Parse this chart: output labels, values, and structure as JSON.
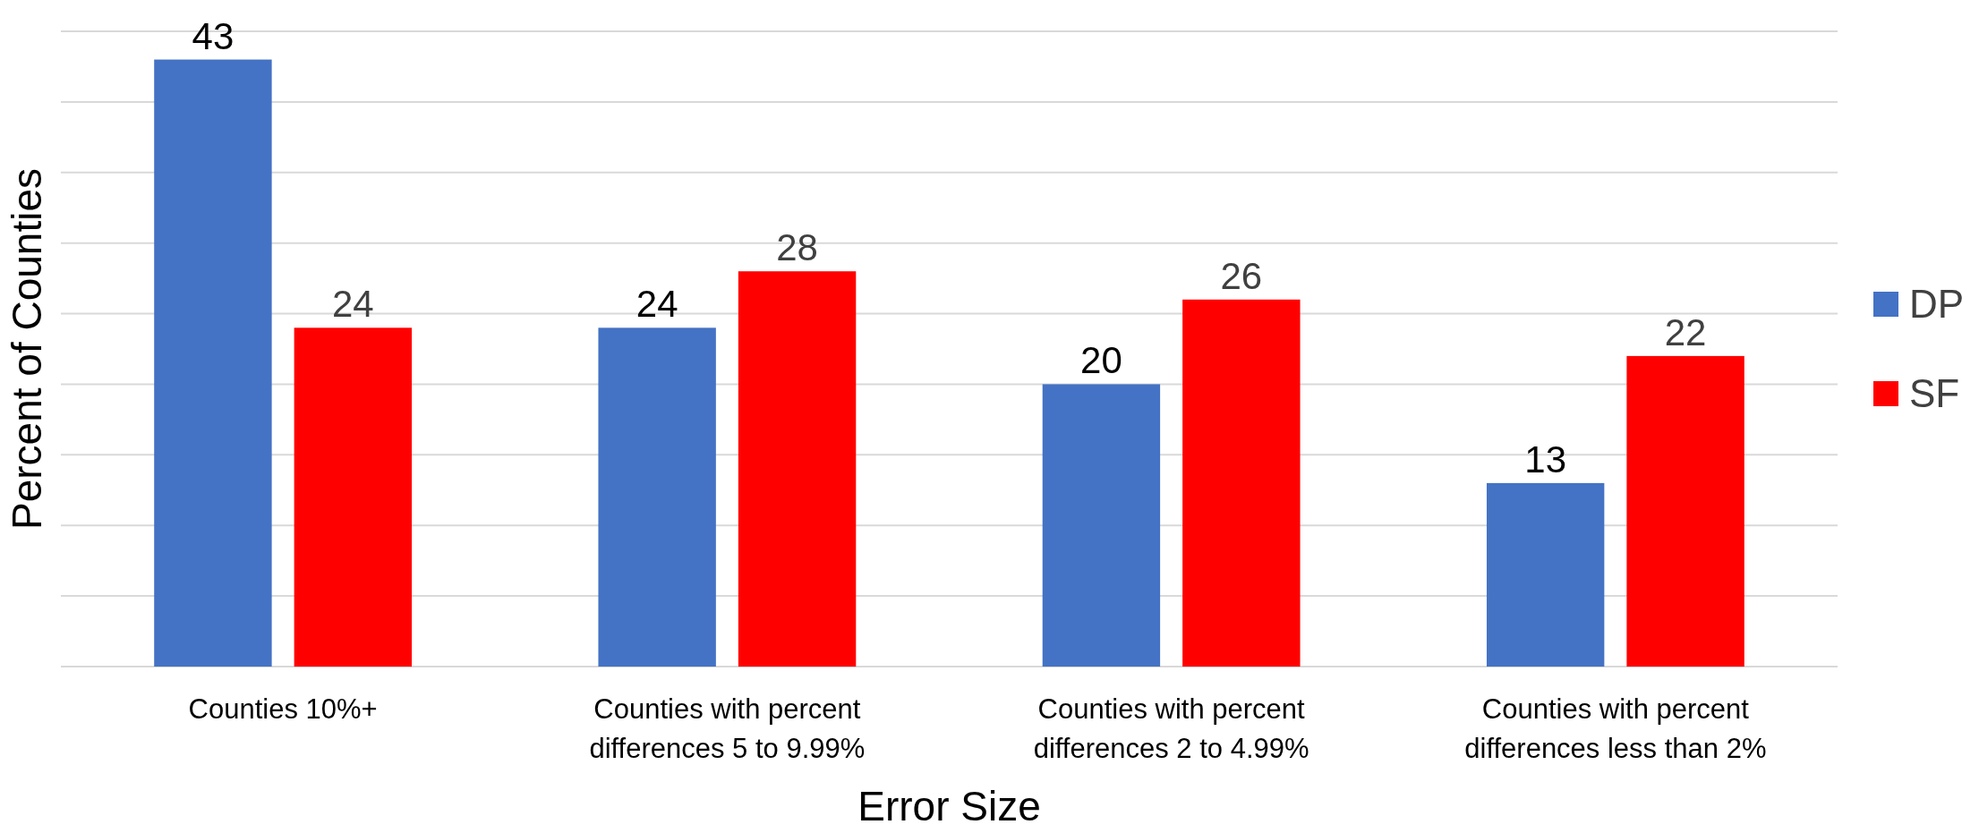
{
  "chart_data": {
    "type": "bar",
    "xlabel": "Error Size",
    "ylabel": "Percent of Counties",
    "categories": [
      "Counties 10%+",
      "Counties with percent differences 5 to 9.99%",
      "Counties with percent differences 2 to 4.99%",
      "Counties with percent differences less than 2%"
    ],
    "series": [
      {
        "name": "DP",
        "color": "#4472c4",
        "values": [
          43,
          24,
          20,
          13
        ]
      },
      {
        "name": "SF",
        "color": "#ff0000",
        "values": [
          24,
          28,
          26,
          22
        ]
      }
    ],
    "ylim": [
      0,
      45
    ],
    "yticks": [
      {
        "value": 0,
        "label": null
      },
      {
        "value": 5,
        "label": null
      },
      {
        "value": 10,
        "label": null
      },
      {
        "value": 15,
        "label": null
      },
      {
        "value": 20,
        "label": null
      },
      {
        "value": 25,
        "label": null
      },
      {
        "value": 30,
        "label": null
      },
      {
        "value": 35,
        "label": null
      },
      {
        "value": 40,
        "label": null
      },
      {
        "value": 45,
        "label": null
      }
    ],
    "tick_labels": "x",
    "grid": "y",
    "legend": "right",
    "data_labels": true
  }
}
